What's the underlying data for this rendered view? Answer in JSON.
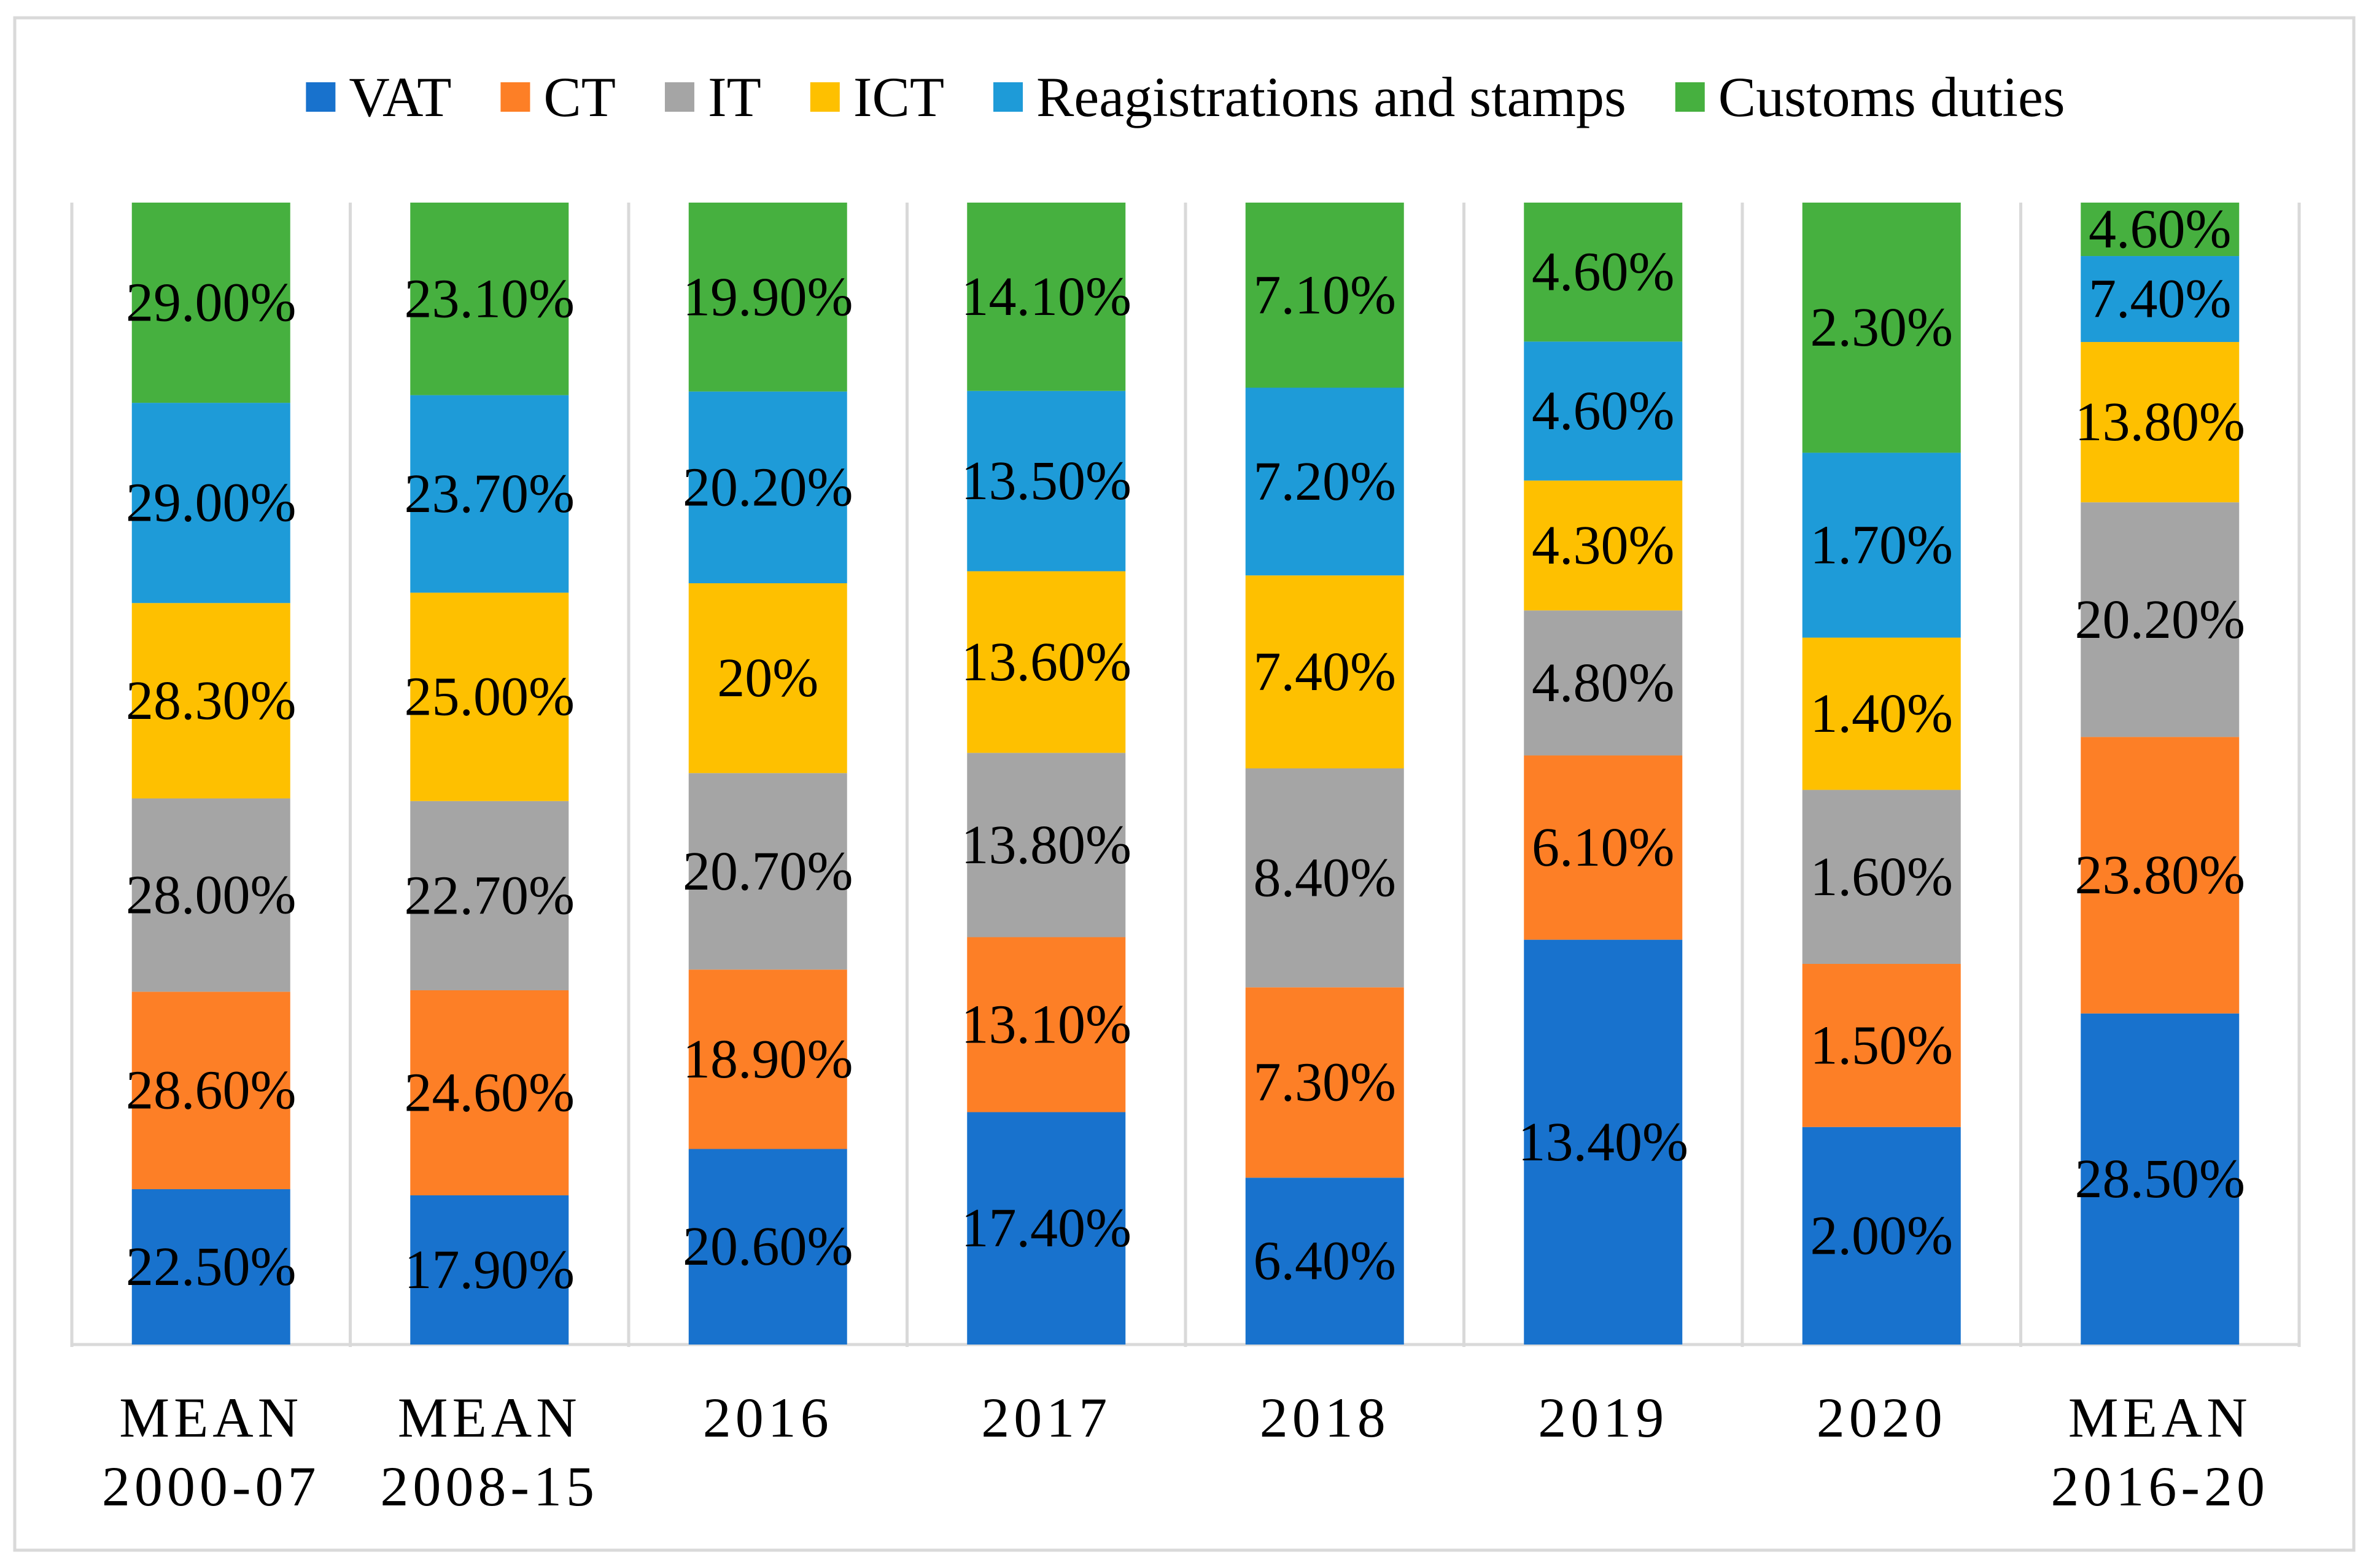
{
  "chart_data": {
    "type": "bar",
    "stacked": "100%",
    "title": "",
    "xlabel": "",
    "ylabel": "",
    "ylim": [
      0,
      100
    ],
    "grid": false,
    "legend_position": "top",
    "categories": [
      [
        "MEAN",
        "2000-07"
      ],
      [
        "MEAN",
        "2008-15"
      ],
      [
        "2016"
      ],
      [
        "2017"
      ],
      [
        "2018"
      ],
      [
        "2019"
      ],
      [
        "2020"
      ],
      [
        "MEAN",
        "2016-20"
      ]
    ],
    "series": [
      {
        "name": "VAT",
        "color": "#1872CD",
        "values": [
          22.5,
          17.9,
          20.6,
          17.4,
          6.4,
          13.4,
          2.0,
          28.5
        ],
        "labels": [
          "22.50%",
          "17.90%",
          "20.60%",
          "17.40%",
          "6.40%",
          "13.40%",
          "2.00%",
          "28.50%"
        ]
      },
      {
        "name": "CT",
        "color": "#FD7F26",
        "values": [
          28.6,
          24.6,
          18.9,
          13.1,
          7.3,
          6.1,
          1.5,
          23.8
        ],
        "labels": [
          "28.60%",
          "24.60%",
          "18.90%",
          "13.10%",
          "7.30%",
          "6.10%",
          "1.50%",
          "23.80%"
        ]
      },
      {
        "name": "IT",
        "color": "#A5A5A5",
        "values": [
          28.0,
          22.7,
          20.7,
          13.8,
          8.4,
          4.8,
          1.6,
          20.2
        ],
        "labels": [
          "28.00%",
          "22.70%",
          "20.70%",
          "13.80%",
          "8.40%",
          "4.80%",
          "1.60%",
          "20.20%"
        ]
      },
      {
        "name": "ICT",
        "color": "#FEC000",
        "values": [
          28.3,
          25.0,
          20.0,
          13.6,
          7.4,
          4.3,
          1.4,
          13.8
        ],
        "labels": [
          "28.30%",
          "25.00%",
          "20%",
          "13.60%",
          "7.40%",
          "4.30%",
          "1.40%",
          "13.80%"
        ]
      },
      {
        "name": "Reagistrations and stamps",
        "color": "#1E9BD8",
        "values": [
          29.0,
          23.7,
          20.2,
          13.5,
          7.2,
          4.6,
          1.7,
          7.4
        ],
        "labels": [
          "29.00%",
          "23.70%",
          "20.20%",
          "13.50%",
          "7.20%",
          "4.60%",
          "1.70%",
          "7.40%"
        ]
      },
      {
        "name": "Customs duties",
        "color": "#46B03F",
        "values": [
          29.0,
          23.1,
          19.9,
          14.1,
          7.1,
          4.6,
          2.3,
          4.6
        ],
        "labels": [
          "29.00%",
          "23.10%",
          "19.90%",
          "14.10%",
          "7.10%",
          "4.60%",
          "2.30%",
          "4.60%"
        ]
      }
    ]
  }
}
